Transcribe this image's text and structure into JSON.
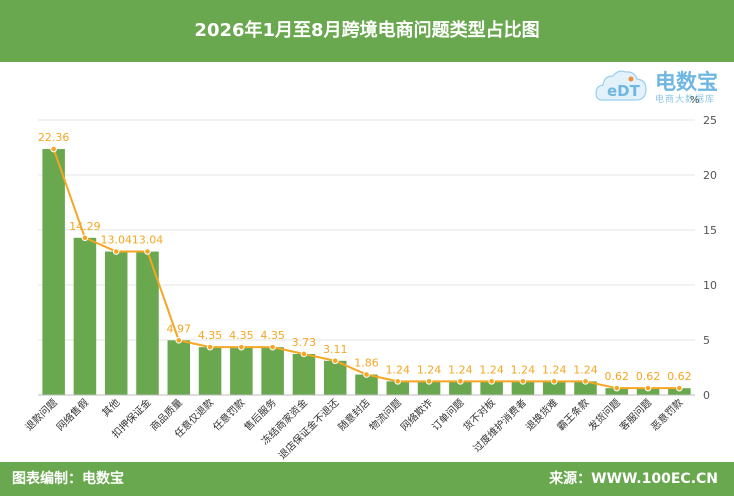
{
  "header": {
    "title": "2026年1月至8月跨境电商问题类型占比图"
  },
  "logo": {
    "text": "电数宝",
    "sub": "电商大数据库",
    "mark": "eDT"
  },
  "footer": {
    "left": "图表编制：电数宝",
    "right": "来源：WWW.100EC.CN"
  },
  "colors": {
    "bar": "#6aa84f",
    "line": "#f5a623",
    "label": "#f5a623",
    "header": "#6aa84f"
  },
  "chart_data": {
    "type": "bar",
    "title": "2026年1月至8月跨境电商问题类型占比图",
    "unit": "%",
    "ylim": [
      0,
      25
    ],
    "yticks": [
      0,
      5,
      10,
      15,
      20,
      25
    ],
    "grid": true,
    "y_axis_position": "right",
    "categories": [
      "退款问题",
      "网络售假",
      "其他",
      "扣押保证金",
      "商品质量",
      "任意仅退款",
      "任意罚款",
      "售后服务",
      "冻结商家资金",
      "退店保证金不退还",
      "随意封店",
      "物流问题",
      "网络欺诈",
      "订单问题",
      "货不对板",
      "过度维护消费者",
      "退换货难",
      "霸王条款",
      "发货问题",
      "客服问题",
      "恶意罚款"
    ],
    "values": [
      22.36,
      14.29,
      13.04,
      13.04,
      4.97,
      4.35,
      4.35,
      4.35,
      3.73,
      3.11,
      1.86,
      1.24,
      1.24,
      1.24,
      1.24,
      1.24,
      1.24,
      1.24,
      0.62,
      0.62,
      0.62
    ],
    "value_labels": [
      "22.36",
      "14.29",
      "13.04",
      "13.04",
      "4.97",
      "4.35",
      "4.35",
      "4.35",
      "3.73",
      "3.11",
      "1.86",
      "1.24",
      "1.24",
      "1.24",
      "1.24",
      "1.24",
      "1.24",
      "1.24",
      "0.62",
      "0.62",
      "0.62"
    ],
    "overlay": "line"
  }
}
